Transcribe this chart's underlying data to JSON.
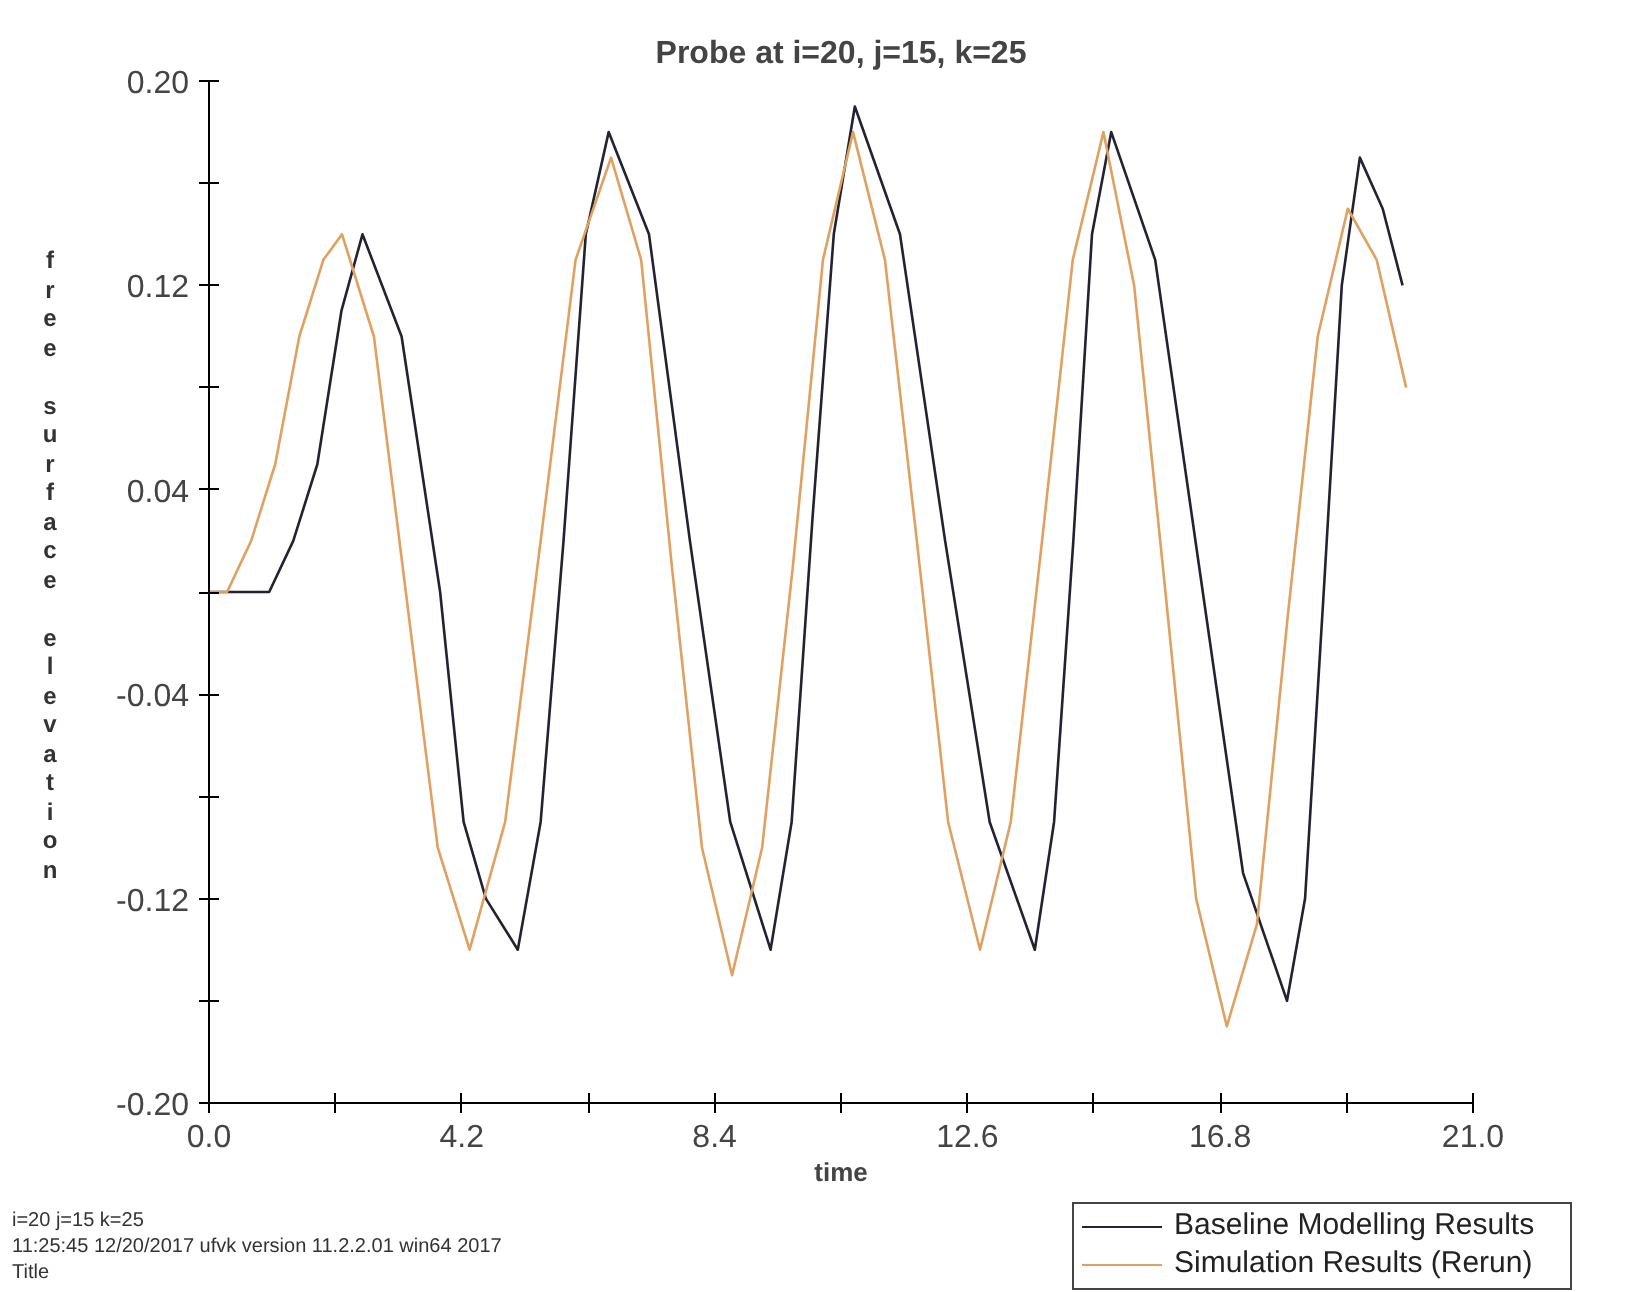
{
  "chart_data": {
    "type": "line",
    "title": "Probe at i=20, j=15, k=25",
    "xlabel": "time",
    "ylabel": "free surface elevation",
    "xlim": [
      0,
      21
    ],
    "ylim": [
      -0.2,
      0.2
    ],
    "xticks": [
      {
        "value": 0,
        "label": "0.0"
      },
      {
        "value": 2.1,
        "label": null
      },
      {
        "value": 4.2,
        "label": "4.2"
      },
      {
        "value": 6.3,
        "label": null
      },
      {
        "value": 8.4,
        "label": "8.4"
      },
      {
        "value": 10.5,
        "label": null
      },
      {
        "value": 12.6,
        "label": "12.6"
      },
      {
        "value": 14.7,
        "label": null
      },
      {
        "value": 16.8,
        "label": "16.8"
      },
      {
        "value": 18.9,
        "label": null
      },
      {
        "value": 21,
        "label": "21.0"
      }
    ],
    "yticks": [
      {
        "value": -0.2,
        "label": "-0.20"
      },
      {
        "value": -0.16,
        "label": null
      },
      {
        "value": -0.12,
        "label": "-0.12"
      },
      {
        "value": -0.08,
        "label": null
      },
      {
        "value": -0.04,
        "label": "-0.04"
      },
      {
        "value": 0,
        "label": null
      },
      {
        "value": 0.04,
        "label": "0.04"
      },
      {
        "value": 0.08,
        "label": null
      },
      {
        "value": 0.12,
        "label": "0.12"
      },
      {
        "value": 0.16,
        "label": null
      },
      {
        "value": 0.2,
        "label": "0.20"
      }
    ],
    "grid": false,
    "legend": "bottom right",
    "line_style": "solid",
    "series": [
      {
        "name": "Baseline Modelling Results",
        "color": "#222233",
        "x": [
          0,
          0.5,
          1.0,
          1.4,
          1.8,
          2.2,
          2.55,
          3.2,
          3.84,
          4.23,
          4.6,
          5.13,
          5.51,
          5.89,
          6.26,
          6.64,
          7.31,
          7.99,
          8.66,
          9.33,
          9.68,
          10.03,
          10.38,
          10.73,
          11.48,
          12.23,
          12.97,
          13.72,
          14.04,
          14.36,
          14.67,
          14.99,
          15.72,
          16.45,
          17.18,
          17.91,
          18.21,
          18.52,
          18.82,
          19.12,
          19.5,
          19.83
        ],
        "values": [
          0,
          0,
          0,
          0.02,
          0.05,
          0.11,
          0.14,
          0.1,
          0,
          -0.09,
          -0.12,
          -0.14,
          -0.09,
          0.02,
          0.14,
          0.18,
          0.14,
          0.02,
          -0.09,
          -0.14,
          -0.09,
          0.03,
          0.14,
          0.19,
          0.14,
          0.02,
          -0.09,
          -0.14,
          -0.09,
          0.02,
          0.14,
          0.18,
          0.13,
          0.01,
          -0.11,
          -0.16,
          -0.12,
          0,
          0.12,
          0.17,
          0.15,
          0.12
        ]
      },
      {
        "name": "Simulation Results (Rerun)",
        "color": "#e0a060",
        "x": [
          0,
          0.3,
          0.7,
          1.1,
          1.5,
          1.9,
          2.21,
          2.74,
          3.27,
          3.8,
          4.33,
          4.92,
          5.51,
          6.09,
          6.68,
          7.18,
          7.69,
          8.19,
          8.69,
          9.19,
          9.7,
          10.2,
          10.7,
          11.23,
          11.76,
          12.28,
          12.81,
          13.32,
          13.84,
          14.35,
          14.86,
          15.37,
          15.89,
          16.4,
          16.91,
          17.41,
          17.92,
          18.42,
          18.92,
          19.4,
          19.89
        ],
        "values": [
          0,
          0,
          0.02,
          0.05,
          0.1,
          0.13,
          0.14,
          0.1,
          0,
          -0.1,
          -0.14,
          -0.09,
          0.02,
          0.13,
          0.17,
          0.13,
          0.01,
          -0.1,
          -0.15,
          -0.1,
          0.01,
          0.13,
          0.18,
          0.13,
          0.02,
          -0.09,
          -0.14,
          -0.09,
          0.02,
          0.13,
          0.18,
          0.12,
          0,
          -0.12,
          -0.17,
          -0.13,
          -0.01,
          0.1,
          0.15,
          0.13,
          0.08
        ]
      }
    ],
    "annotations": [
      "i=20 j=15 k=25",
      "11:25:45  12/20/2017 ufvk  version 11.2.2.01 win64 2017",
      "Title"
    ]
  }
}
